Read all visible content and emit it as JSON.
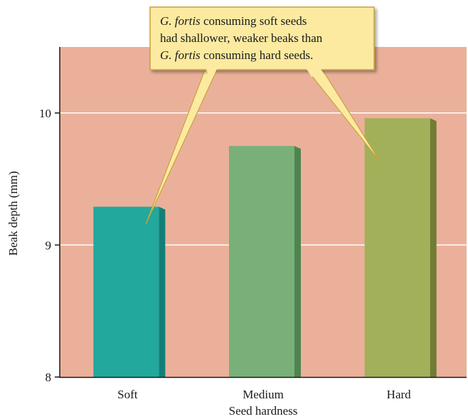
{
  "chart_data": {
    "type": "bar",
    "categories": [
      "Soft",
      "Medium",
      "Hard"
    ],
    "values": [
      9.29,
      9.75,
      9.96
    ],
    "xlabel": "Seed hardness",
    "ylabel": "Beak depth (mm)",
    "ylim": [
      8,
      10.5
    ],
    "yticks": [
      8,
      9,
      10
    ],
    "grid": true,
    "annotation": {
      "line1_italic": "G. fortis",
      "line1_rest": " consuming soft seeds",
      "line2": "had shallower, weaker beaks than",
      "line3_italic": "G. fortis",
      "line3_rest": " consuming hard seeds."
    },
    "colors": {
      "plot_background": "#ebb09a",
      "bars": [
        "#22a89c",
        "#79b079",
        "#a2b05a"
      ],
      "bar_shadows": [
        "#147f76",
        "#4f8450",
        "#6f7c33"
      ],
      "callout_fill": "#fbeaa0",
      "callout_border": "#c9a23a"
    }
  }
}
